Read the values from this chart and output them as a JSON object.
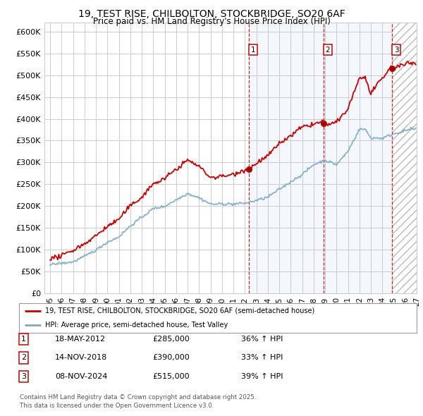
{
  "title": "19, TEST RISE, CHILBOLTON, STOCKBRIDGE, SO20 6AF",
  "subtitle": "Price paid vs. HM Land Registry's House Price Index (HPI)",
  "legend_line1": "19, TEST RISE, CHILBOLTON, STOCKBRIDGE, SO20 6AF (semi-detached house)",
  "legend_line2": "HPI: Average price, semi-detached house, Test Valley",
  "footer1": "Contains HM Land Registry data © Crown copyright and database right 2025.",
  "footer2": "This data is licensed under the Open Government Licence v3.0.",
  "transactions": [
    {
      "label": "1",
      "date": "18-MAY-2012",
      "price": 285000,
      "hpi_pct": "36%",
      "x_year": 2012.38
    },
    {
      "label": "2",
      "date": "14-NOV-2018",
      "price": 390000,
      "hpi_pct": "33%",
      "x_year": 2018.87
    },
    {
      "label": "3",
      "date": "08-NOV-2024",
      "price": 515000,
      "hpi_pct": "39%",
      "x_year": 2024.86
    }
  ],
  "xlim": [
    1994.5,
    2027.0
  ],
  "ylim": [
    0,
    620000
  ],
  "yticks": [
    0,
    50000,
    100000,
    150000,
    200000,
    250000,
    300000,
    350000,
    400000,
    450000,
    500000,
    550000,
    600000
  ],
  "xticks": [
    1995,
    1996,
    1997,
    1998,
    1999,
    2000,
    2001,
    2002,
    2003,
    2004,
    2005,
    2006,
    2007,
    2008,
    2009,
    2010,
    2011,
    2012,
    2013,
    2014,
    2015,
    2016,
    2017,
    2018,
    2019,
    2020,
    2021,
    2022,
    2023,
    2024,
    2025,
    2026,
    2027
  ],
  "red_color": "#cc0000",
  "blue_color": "#7aaac8",
  "bg_color": "#ffffff",
  "grid_color": "#cccccc"
}
